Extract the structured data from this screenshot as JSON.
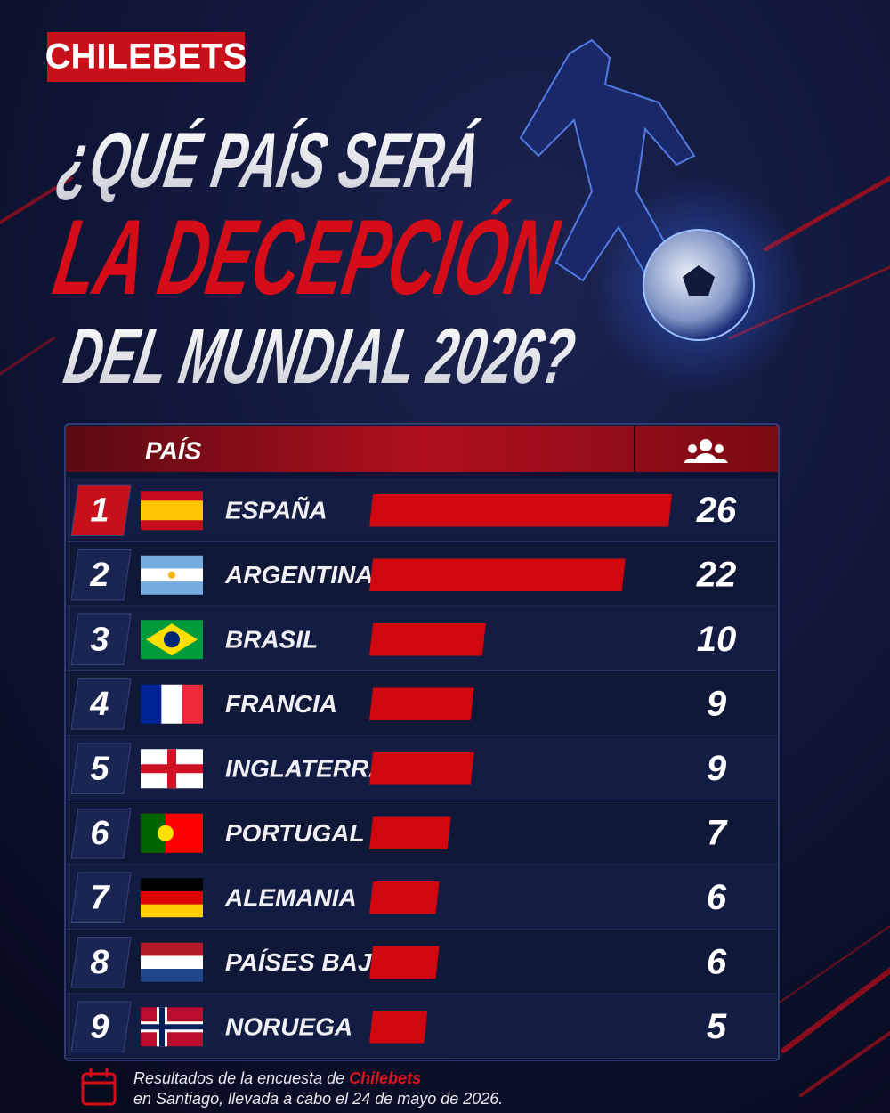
{
  "brand": "CHILEBETS",
  "headline": {
    "line1": "¿QUÉ PAÍS SERÁ",
    "line2": "LA DECEPCIÓN",
    "line3": "DEL MUNDIAL 2026?"
  },
  "chart_data": {
    "type": "bar",
    "category_header": "PAÍS",
    "ranks": [
      1,
      2,
      3,
      4,
      5,
      6,
      7,
      8,
      9
    ],
    "categories": [
      "ESPAÑA",
      "ARGENTINA",
      "BRASIL",
      "FRANCIA",
      "INGLATERRA",
      "PORTUGAL",
      "ALEMANIA",
      "PAÍSES BAJOS",
      "NORUEGA"
    ],
    "values": [
      26,
      22,
      10,
      9,
      9,
      7,
      6,
      6,
      5
    ],
    "color": "#d0070f"
  },
  "footer": {
    "text_before": "Resultados de la encuesta de ",
    "highlight": "Chilebets",
    "line2": "en Santiago, llevada a cabo el 24 de mayo de 2026."
  }
}
